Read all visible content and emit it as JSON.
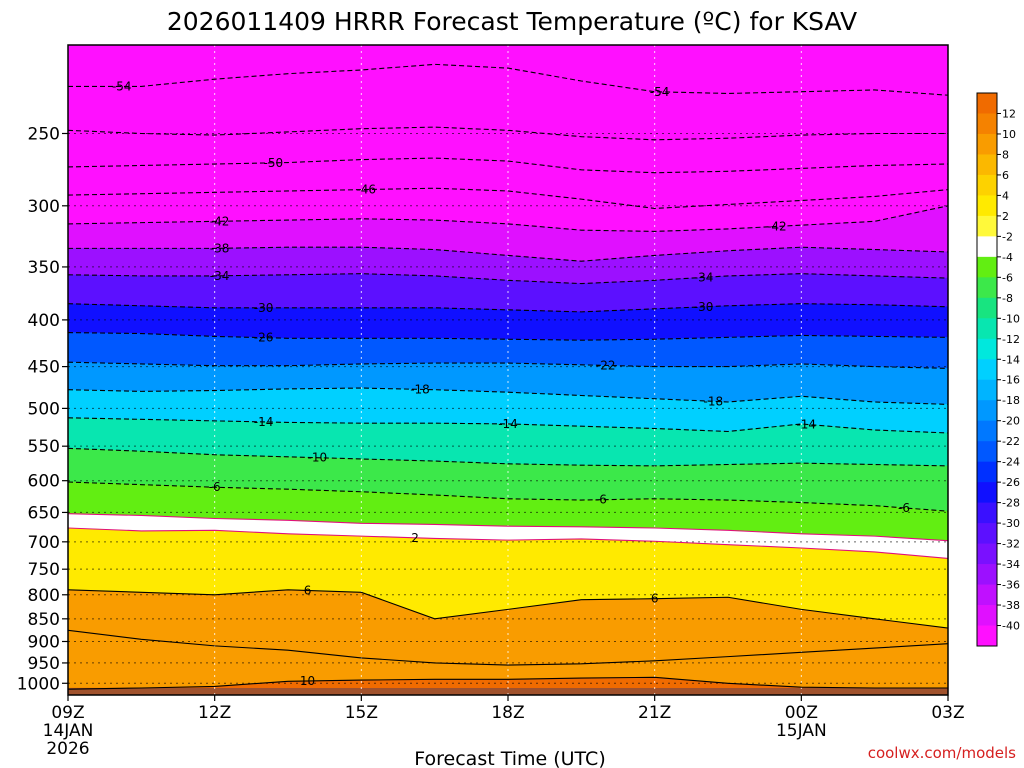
{
  "chart_data": {
    "type": "heatmap",
    "title": "2026011409 HRRR Forecast Temperature (ºC) for KSAV",
    "xlabel": "Forecast Time (UTC)",
    "ylabel": "",
    "credit": "coolwx.com/models",
    "x_ticks": [
      {
        "hours": 0,
        "label": "09Z",
        "sub": [
          "14JAN",
          "2026"
        ]
      },
      {
        "hours": 3,
        "label": "12Z",
        "sub": []
      },
      {
        "hours": 6,
        "label": "15Z",
        "sub": []
      },
      {
        "hours": 9,
        "label": "18Z",
        "sub": []
      },
      {
        "hours": 12,
        "label": "21Z",
        "sub": []
      },
      {
        "hours": 15,
        "label": "00Z",
        "sub": [
          "15JAN"
        ]
      },
      {
        "hours": 18,
        "label": "03Z",
        "sub": []
      }
    ],
    "xlim": [
      0,
      18
    ],
    "y_ticks": [
      250,
      300,
      350,
      400,
      450,
      500,
      550,
      600,
      650,
      700,
      750,
      800,
      850,
      900,
      950,
      1000
    ],
    "ylim_hpa": [
      200,
      1030
    ],
    "colorbar": {
      "labels": [
        "12",
        "10",
        "8",
        "6",
        "4",
        "2",
        "-2",
        "-4",
        "-6",
        "-8",
        "-10",
        "-12",
        "-14",
        "-16",
        "-18",
        "-20",
        "-22",
        "-24",
        "-26",
        "-28",
        "-30",
        "-32",
        "-34",
        "-36",
        "-38",
        "-40"
      ],
      "colors": [
        "#f06b00",
        "#f58200",
        "#f99c00",
        "#fbb800",
        "#fdd200",
        "#ffea00",
        "#fff93a",
        "#ffffff",
        "#62ee12",
        "#3ce84a",
        "#18e480",
        "#08e6b0",
        "#00e8dd",
        "#00d0ff",
        "#00b4ff",
        "#0098ff",
        "#0078ff",
        "#0058ff",
        "#0030ff",
        "#1010ff",
        "#3a10ff",
        "#5c10ff",
        "#7a10ff",
        "#9c10ff",
        "#c010ff",
        "#e010ff",
        "#ff10ff"
      ]
    },
    "ground_pressure_hpa": 1012,
    "isotherms": [
      {
        "temp": -54,
        "pressure": [
          222,
          222,
          218,
          215,
          213,
          210,
          212,
          219,
          225,
          226,
          225,
          224,
          227
        ],
        "labels": [
          {
            "hours": 1.1,
            "text": "-54"
          },
          {
            "hours": 12.1,
            "text": "-54"
          }
        ]
      },
      {
        "temp": -54,
        "pressure": [
          248,
          250,
          251,
          249,
          247,
          246,
          248,
          252,
          254,
          253,
          251,
          250,
          250
        ],
        "labels": []
      },
      {
        "temp": -50,
        "pressure": [
          272,
          271,
          270,
          269,
          267,
          266,
          268,
          274,
          276,
          275,
          273,
          271,
          270
        ],
        "labels": [
          {
            "hours": 4.2,
            "text": "-50"
          }
        ]
      },
      {
        "temp": -46,
        "pressure": [
          292,
          291,
          290,
          289,
          288,
          287,
          289,
          295,
          302,
          299,
          296,
          293,
          288
        ],
        "labels": [
          {
            "hours": 6.1,
            "text": "-46"
          }
        ]
      },
      {
        "temp": -42,
        "pressure": [
          314,
          313,
          312,
          311,
          310,
          311,
          314,
          319,
          320,
          318,
          315,
          312,
          300
        ],
        "labels": [
          {
            "hours": 3.1,
            "text": "-42"
          },
          {
            "hours": 14.5,
            "text": "-42"
          }
        ]
      },
      {
        "temp": -38,
        "pressure": [
          334,
          334,
          334,
          333,
          333,
          335,
          340,
          345,
          340,
          336,
          333,
          335,
          337
        ],
        "labels": [
          {
            "hours": 3.1,
            "text": "-38"
          }
        ]
      },
      {
        "temp": -34,
        "pressure": [
          357,
          358,
          358,
          357,
          356,
          358,
          362,
          365,
          362,
          358,
          356,
          358,
          360
        ],
        "labels": [
          {
            "hours": 3.1,
            "text": "-34"
          },
          {
            "hours": 13.0,
            "text": "-34"
          }
        ]
      },
      {
        "temp": -30,
        "pressure": [
          384,
          386,
          388,
          388,
          388,
          388,
          390,
          392,
          389,
          386,
          384,
          385,
          387
        ],
        "labels": [
          {
            "hours": 4.0,
            "text": "-30"
          },
          {
            "hours": 13.0,
            "text": "-30"
          }
        ]
      },
      {
        "temp": -26,
        "pressure": [
          413,
          414,
          417,
          419,
          419,
          419,
          420,
          421,
          420,
          418,
          416,
          417,
          418
        ],
        "labels": [
          {
            "hours": 4.0,
            "text": "-26"
          }
        ]
      },
      {
        "temp": -22,
        "pressure": [
          445,
          447,
          449,
          449,
          447,
          446,
          446,
          448,
          450,
          450,
          447,
          450,
          452
        ],
        "labels": [
          {
            "hours": 11.0,
            "text": "-22"
          }
        ]
      },
      {
        "temp": -18,
        "pressure": [
          477,
          479,
          478,
          476,
          475,
          477,
          480,
          484,
          488,
          492,
          485,
          492,
          495
        ],
        "labels": [
          {
            "hours": 7.2,
            "text": "-18"
          },
          {
            "hours": 13.2,
            "text": "-18"
          }
        ]
      },
      {
        "temp": -14,
        "pressure": [
          512,
          514,
          516,
          518,
          519,
          519,
          520,
          523,
          526,
          530,
          520,
          528,
          532
        ],
        "labels": [
          {
            "hours": 4.0,
            "text": "-14"
          },
          {
            "hours": 9.0,
            "text": "-14"
          },
          {
            "hours": 15.1,
            "text": "-14"
          }
        ]
      },
      {
        "temp": -10,
        "pressure": [
          553,
          557,
          562,
          565,
          568,
          571,
          575,
          577,
          578,
          576,
          574,
          576,
          578
        ],
        "labels": [
          {
            "hours": 5.1,
            "text": "-10"
          }
        ]
      },
      {
        "temp": -6,
        "pressure": [
          602,
          606,
          610,
          613,
          617,
          622,
          628,
          630,
          628,
          630,
          634,
          639,
          648
        ],
        "labels": [
          {
            "hours": 3.0,
            "text": "-6"
          },
          {
            "hours": 10.9,
            "text": "-6"
          },
          {
            "hours": 17.1,
            "text": "-6"
          }
        ]
      },
      {
        "temp": 2,
        "pressure": [
          676,
          681,
          680,
          686,
          690,
          694,
          697,
          695,
          699,
          705,
          711,
          718,
          730
        ],
        "labels": [
          {
            "hours": 7.1,
            "text": "2"
          }
        ]
      },
      {
        "temp": -2,
        "pressure": [
          652,
          655,
          660,
          663,
          668,
          670,
          673,
          674,
          676,
          680,
          686,
          690,
          698
        ],
        "labels": []
      },
      {
        "temp": 6,
        "pressure": [
          790,
          795,
          800,
          790,
          795,
          850,
          830,
          810,
          808,
          805,
          830,
          850,
          870
        ],
        "labels": [
          {
            "hours": 4.9,
            "text": "6"
          },
          {
            "hours": 12.0,
            "text": "6"
          }
        ]
      },
      {
        "temp": 6,
        "pressure": [
          875,
          895,
          910,
          920,
          938,
          950,
          955,
          952,
          945,
          935,
          925,
          915,
          905
        ],
        "labels": []
      },
      {
        "temp": 10,
        "pressure": [
          1015,
          1012,
          1008,
          995,
          992,
          990,
          990,
          987,
          985,
          1000,
          1010,
          1012,
          1012
        ],
        "labels": [
          {
            "hours": 4.9,
            "text": "10"
          }
        ]
      }
    ]
  }
}
